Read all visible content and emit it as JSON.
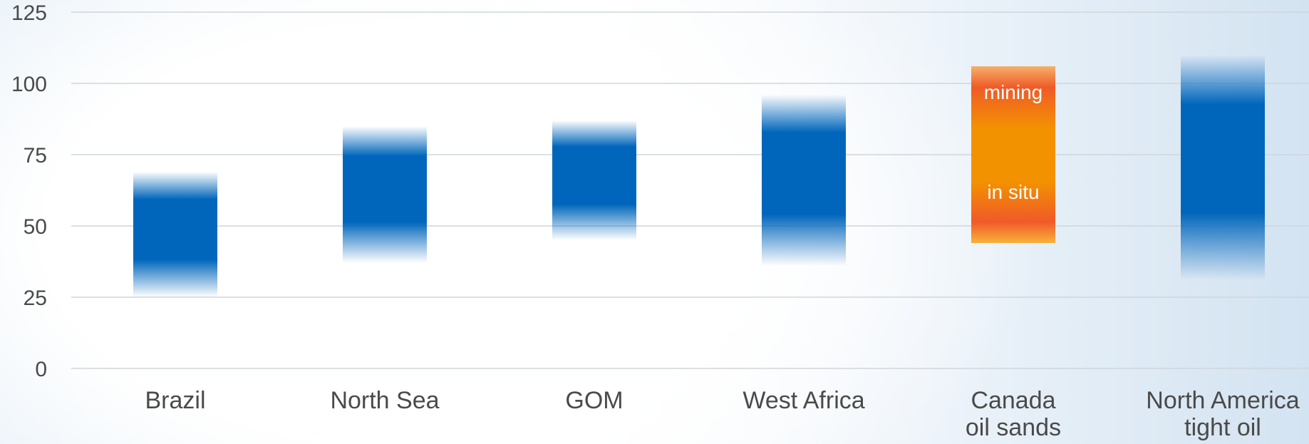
{
  "chart_data": {
    "type": "bar",
    "subtype": "floating-range",
    "categories": [
      [
        "Brazil"
      ],
      [
        "North Sea"
      ],
      [
        "GOM"
      ],
      [
        "West Africa"
      ],
      [
        "Canada",
        "oil sands"
      ],
      [
        "North America",
        "tight oil"
      ]
    ],
    "ranges": [
      {
        "low": 25,
        "high": 69
      },
      {
        "low": 37,
        "high": 85
      },
      {
        "low": 45,
        "high": 87
      },
      {
        "low": 36,
        "high": 96
      },
      {
        "low": 44,
        "high": 106
      },
      {
        "low": 31,
        "high": 110
      }
    ],
    "highlight_index": 4,
    "band_labels": [
      {
        "category_index": 4,
        "text": "mining",
        "value": 97
      },
      {
        "category_index": 4,
        "text": "in situ",
        "value": 62
      }
    ],
    "y_ticks": [
      0,
      25,
      50,
      75,
      100,
      125
    ],
    "ylim": [
      0,
      125
    ],
    "grid": true,
    "title": "",
    "xlabel": "",
    "ylabel": ""
  },
  "colors": {
    "bar": "#0066bb",
    "highlight_core": "#f39200",
    "highlight_edge": "#f05a28",
    "grid": "#cfd6dc",
    "text": "#4a4a4a"
  }
}
